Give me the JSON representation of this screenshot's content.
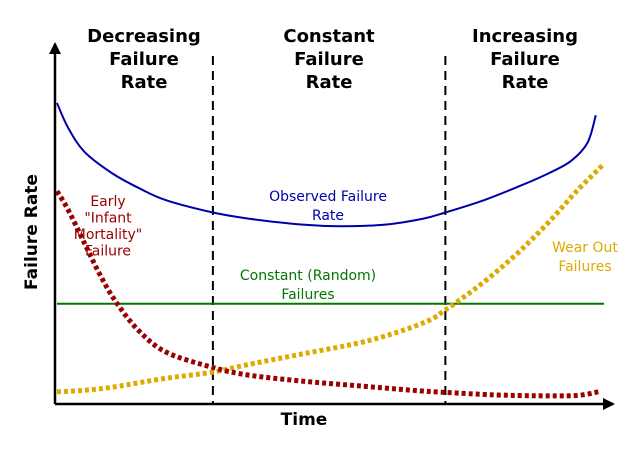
{
  "chart_data": {
    "type": "line",
    "title": "",
    "xlabel": "Time",
    "ylabel": "Failure Rate",
    "xlim": [
      0,
      100
    ],
    "ylim": [
      0,
      100
    ],
    "grid": false,
    "regions": [
      {
        "label": [
          "Decreasing",
          "Failure",
          "Rate"
        ],
        "x_start": 0,
        "x_end": 28.5
      },
      {
        "label": [
          "Constant",
          "Failure",
          "Rate"
        ],
        "x_start": 28.5,
        "x_end": 71
      },
      {
        "label": [
          "Increasing",
          "Failure",
          "Rate"
        ],
        "x_start": 71,
        "x_end": 100
      }
    ],
    "dividers": [
      28.5,
      71
    ],
    "series": [
      {
        "name": "Observed Failure Rate",
        "label_lines": [
          "Observed Failure",
          "Rate"
        ],
        "color": "#0000aa",
        "style": "solid",
        "x": [
          0,
          2,
          5,
          10,
          15,
          20,
          28.5,
          35,
          45,
          52,
          60,
          67,
          71,
          78,
          85,
          90,
          94,
          97,
          98.5
        ],
        "y": [
          99,
          91,
          83,
          76,
          71,
          67,
          63,
          61,
          59,
          58.5,
          59,
          61,
          63,
          67,
          72,
          76,
          80,
          86,
          95
        ]
      },
      {
        "name": "Early \"Infant Mortality\" Failure",
        "label_lines": [
          "Early",
          "\"Infant",
          "Mortality\"",
          "Failure"
        ],
        "color": "#990000",
        "style": "dotted",
        "x": [
          0,
          2,
          5,
          8,
          11,
          15,
          20,
          28.5,
          35,
          45,
          55,
          65,
          71,
          80,
          88,
          95,
          99
        ],
        "y": [
          70,
          64,
          53,
          42,
          33,
          24,
          17,
          12,
          9.5,
          7.5,
          6,
          4.5,
          3.8,
          3,
          2.7,
          2.8,
          4
        ]
      },
      {
        "name": "Constant (Random) Failures",
        "label_lines": [
          "Constant (Random)",
          "Failures"
        ],
        "color": "#007700",
        "style": "solid",
        "x": [
          0,
          100
        ],
        "y": [
          33,
          33
        ]
      },
      {
        "name": "Wear Out Failures",
        "label_lines": [
          "Wear Out",
          "Failures"
        ],
        "color": "#ddaa00",
        "style": "dotted",
        "x": [
          0,
          5,
          10,
          15,
          20,
          28.5,
          35,
          45,
          55,
          62,
          68,
          71,
          75,
          80,
          85,
          90,
          95,
          100
        ],
        "y": [
          4,
          4.5,
          5.5,
          7,
          8.5,
          10.5,
          13,
          16.5,
          20,
          23.5,
          27.5,
          31,
          36,
          43,
          51,
          60,
          70,
          79
        ]
      }
    ]
  }
}
